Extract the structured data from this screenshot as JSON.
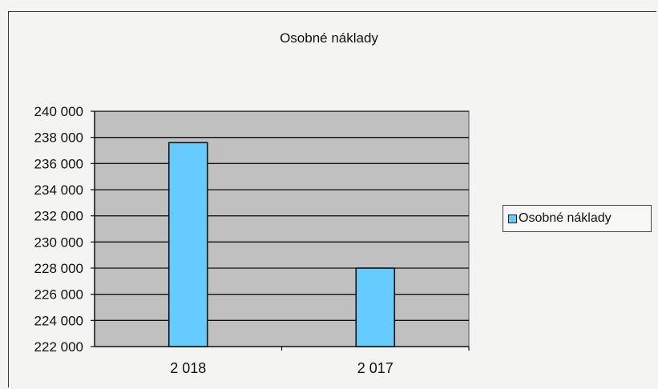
{
  "chart_data": {
    "type": "bar",
    "title": "Osobné náklady",
    "categories": [
      "2 018",
      "2 017"
    ],
    "series": [
      {
        "name": "Osobné náklady",
        "values": [
          237600,
          228000
        ],
        "color": "#66ccff"
      }
    ],
    "ylim": [
      222000,
      240000
    ],
    "yticks": [
      222000,
      224000,
      226000,
      228000,
      230000,
      232000,
      234000,
      236000,
      238000,
      240000
    ],
    "ytick_labels": [
      "222 000",
      "224 000",
      "226 000",
      "228 000",
      "230 000",
      "232 000",
      "234 000",
      "236 000",
      "238 000",
      "240 000"
    ],
    "xlabel": "",
    "ylabel": "",
    "grid": true,
    "plot_background": "#c0c0c0",
    "legend": "right"
  }
}
